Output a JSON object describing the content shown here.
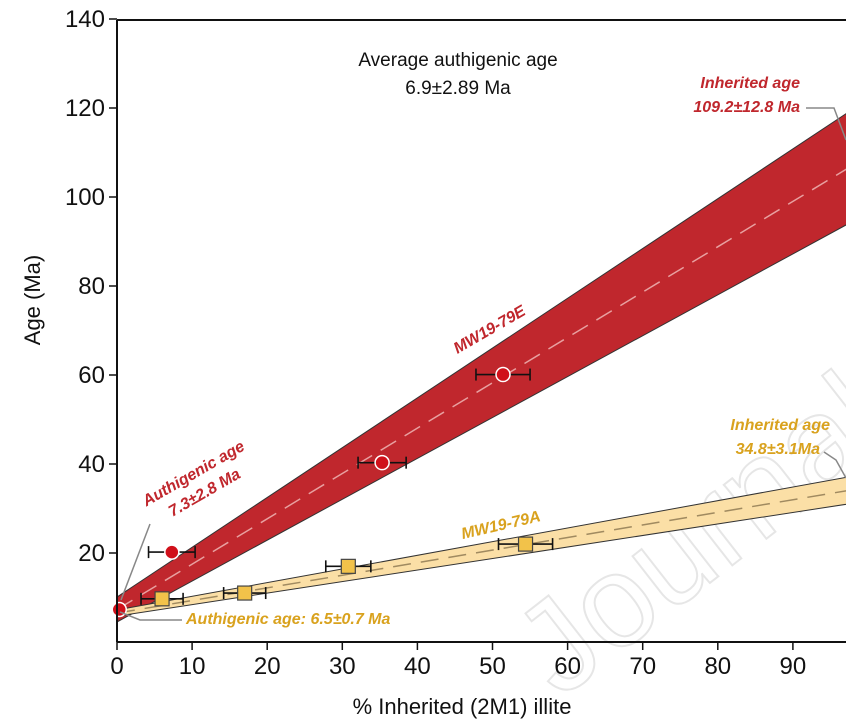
{
  "chart_data": {
    "type": "scatter",
    "xlabel": "% Inherited (2M1) illite",
    "ylabel": "Age (Ma)",
    "xlim": [
      0,
      100
    ],
    "ylim": [
      0,
      140
    ],
    "xticks": [
      0,
      10,
      20,
      30,
      40,
      50,
      60,
      70,
      80,
      90
    ],
    "yticks": [
      20,
      40,
      60,
      80,
      100,
      120,
      140
    ],
    "grid": false,
    "average_note": [
      "Average authigenic age",
      "6.9±2.89 Ma"
    ],
    "series": [
      {
        "name": "MW19-79E",
        "color": "#c0272d",
        "marker": "circle",
        "points": [
          {
            "x": 0.3,
            "y": 7.3,
            "xerr": 0
          },
          {
            "x": 7.3,
            "y": 20.2,
            "xerr": 3.1
          },
          {
            "x": 35.3,
            "y": 40.3,
            "xerr": 3.2
          },
          {
            "x": 51.4,
            "y": 60.1,
            "xerr": 3.6
          }
        ],
        "fit": {
          "y0": 7.3,
          "y100": 109.2
        },
        "band": {
          "lower": [
            4.5,
            96.4
          ],
          "upper": [
            10.1,
            122.0
          ]
        },
        "authigenic_label": [
          "Authigenic age",
          "7.3±2.8 Ma"
        ],
        "inherited_label": [
          "Inherited age",
          "109.2±12.8 Ma"
        ]
      },
      {
        "name": "MW19-79A",
        "color": "#e8b23a",
        "band_color": "#fbdfa6",
        "marker": "square",
        "points": [
          {
            "x": 6.0,
            "y": 9.7,
            "xerr": 2.8
          },
          {
            "x": 17.0,
            "y": 11.0,
            "xerr": 2.8
          },
          {
            "x": 30.8,
            "y": 17.0,
            "xerr": 3.0
          },
          {
            "x": 54.4,
            "y": 22.0,
            "xerr": 3.6
          }
        ],
        "fit": {
          "y0": 6.5,
          "y100": 34.8
        },
        "band": {
          "lower": [
            5.8,
            31.7
          ],
          "upper": [
            7.2,
            37.9
          ]
        },
        "authigenic_label": "Authigenic age: 6.5±0.7 Ma",
        "inherited_label": [
          "Inherited age",
          "34.8±3.1Ma"
        ]
      }
    ],
    "watermark": "Journal Pre-proof"
  }
}
